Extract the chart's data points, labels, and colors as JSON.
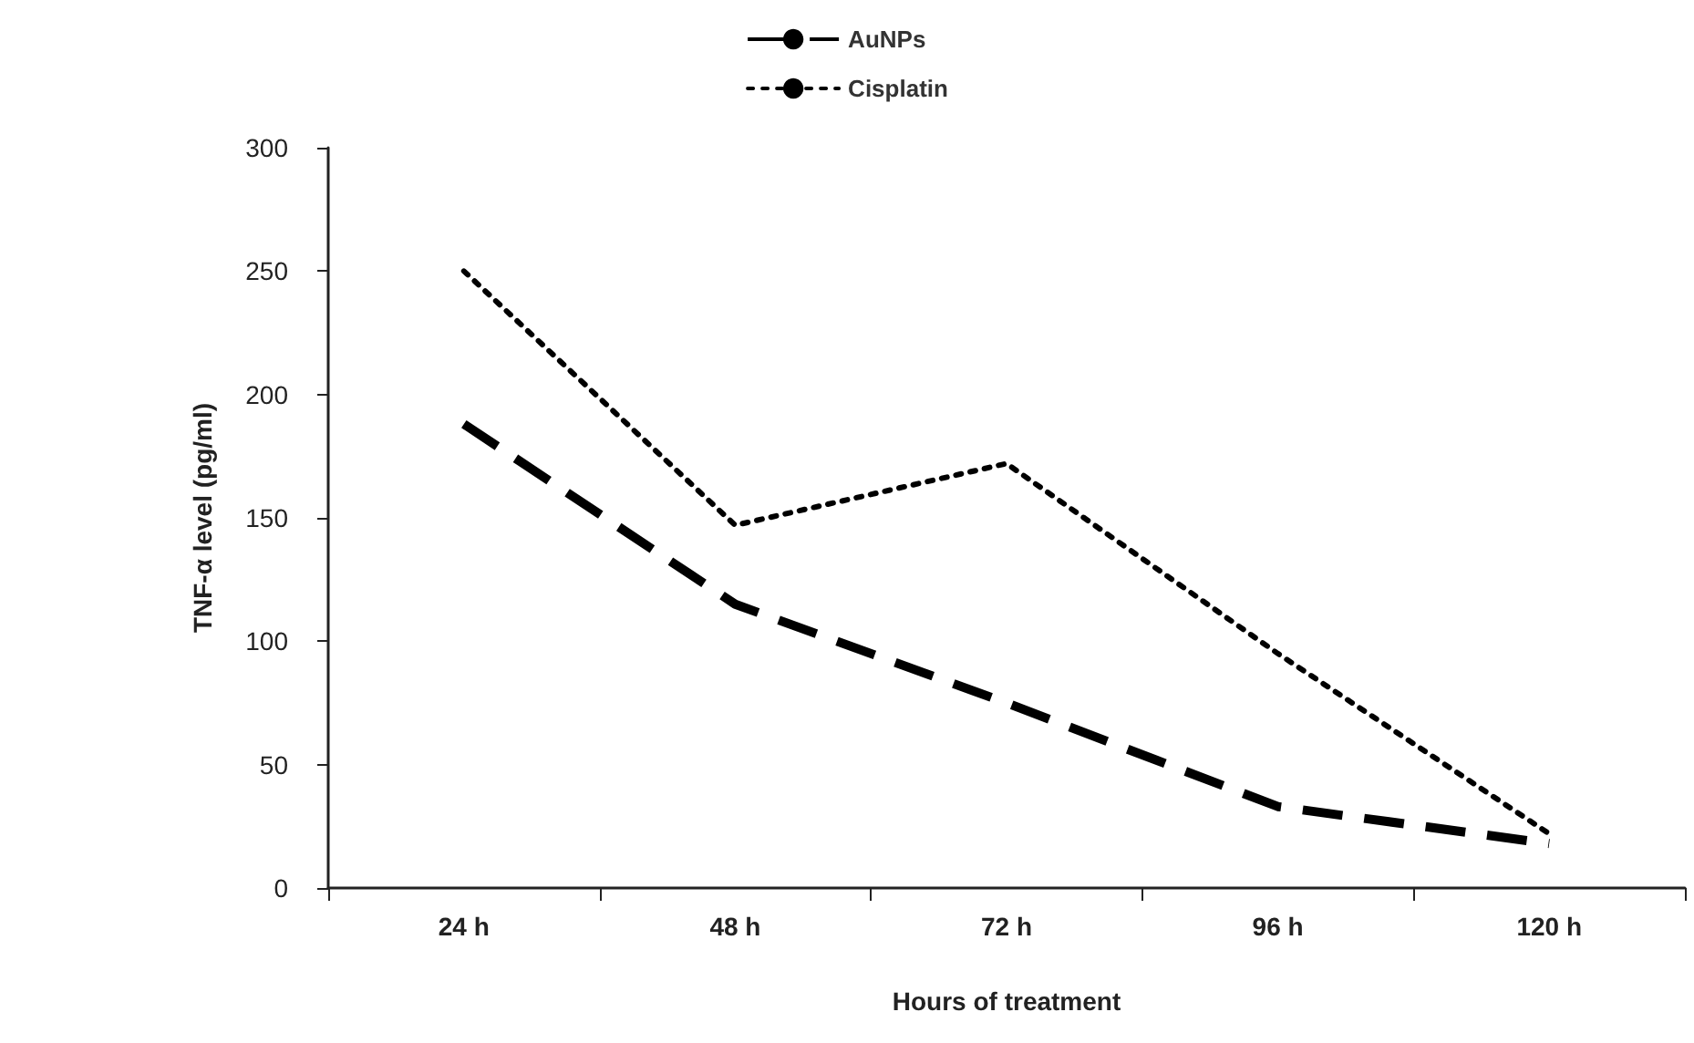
{
  "chart_data": {
    "type": "line",
    "xlabel": "Hours of treatment",
    "ylabel": "TNF-α level (pg/ml)",
    "categories": [
      "24 h",
      "48 h",
      "72 h",
      "96 h",
      "120 h"
    ],
    "series": [
      {
        "name": "AuNPs",
        "color": "#000000",
        "line_style": "dashed",
        "values": [
          188,
          115,
          75,
          33,
          18
        ]
      },
      {
        "name": "Cisplatin",
        "color": "#000000",
        "line_style": "dotted",
        "values": [
          250,
          147,
          172,
          95,
          22
        ]
      }
    ],
    "ylim": [
      0,
      300
    ],
    "yticks": [
      0,
      50,
      100,
      150,
      200,
      250,
      300
    ],
    "grid": false,
    "legend": "top",
    "marker": "none"
  }
}
